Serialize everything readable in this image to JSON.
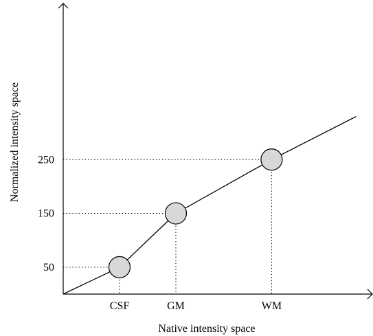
{
  "chart_data": {
    "type": "line",
    "title": "",
    "xlabel": "Native intensity space",
    "ylabel": "Normalized intensity space",
    "grid": false,
    "legend": "none",
    "x_tick_labels": [
      "CSF",
      "GM",
      "WM"
    ],
    "y_tick_labels": [
      "50",
      "150",
      "250"
    ],
    "y_ticks": [
      50,
      150,
      250
    ],
    "series": [
      {
        "x": [
          0,
          1,
          2,
          3.7,
          5.2
        ],
        "y": [
          0,
          50,
          150,
          250,
          330
        ]
      }
    ],
    "landmarks": [
      {
        "label": "CSF",
        "x": 1,
        "y": 50
      },
      {
        "label": "GM",
        "x": 2,
        "y": 150
      },
      {
        "label": "WM",
        "x": 3.7,
        "y": 250
      }
    ],
    "xlim": [
      0,
      5.5
    ],
    "ylim": [
      0,
      440
    ],
    "colors": {
      "line": "#000000",
      "marker_fill": "#d8d8d8",
      "marker_stroke": "#000000"
    }
  }
}
